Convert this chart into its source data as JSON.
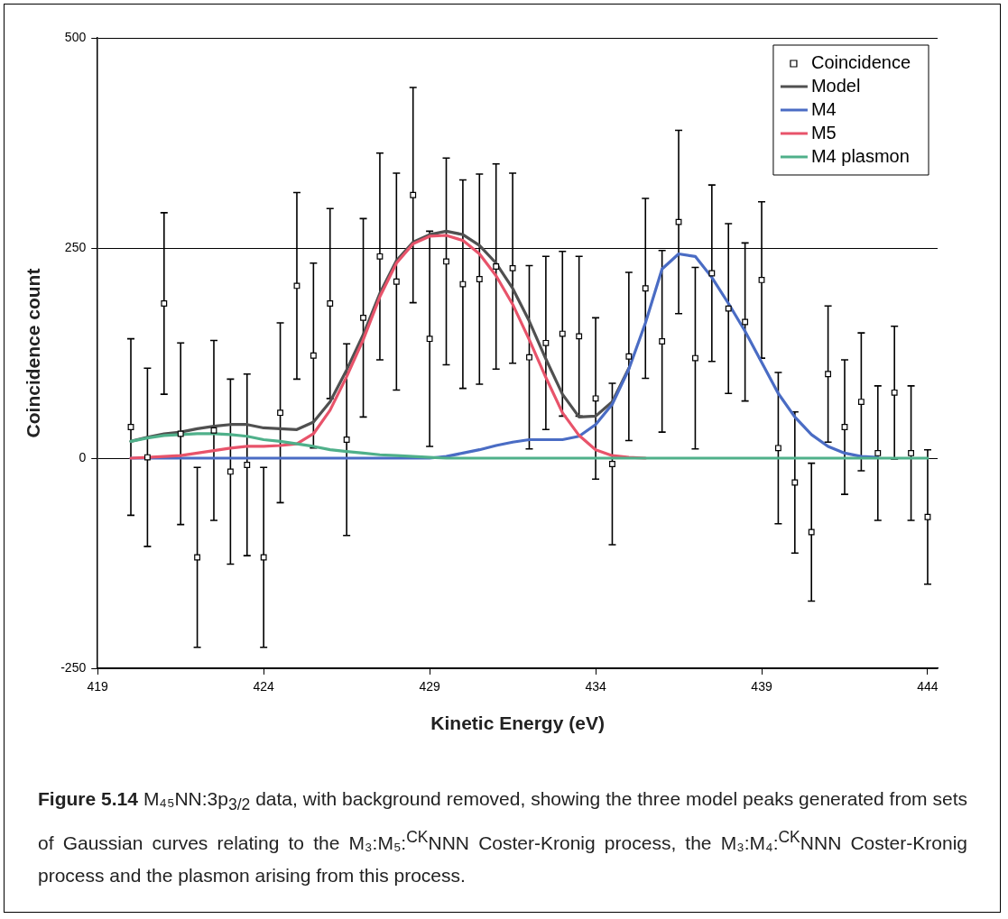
{
  "chart_data": {
    "type": "line",
    "xlabel": "Kinetic Energy (eV)",
    "ylabel": "Coincidence count",
    "annotations": [
      "Figure 5.14",
      "M₄₅NN:3p$_{3/2}$ data, with background removed, showing the three model peaks generated from sets of Gaussian curves relating to the M₃:M₅:$^{CK}$NNN Coster-Kronig process, the M₃:M₄:$^{CK}$NNN Coster-Kronig process and the plasmon arising from this process."
    ],
    "x": [
      420,
      420.5,
      421,
      421.5,
      422,
      422.5,
      423,
      423.5,
      424,
      424.5,
      425,
      425.5,
      426,
      426.5,
      427,
      427.5,
      428,
      428.5,
      429,
      429.5,
      430,
      430.5,
      431,
      431.5,
      432,
      432.5,
      433,
      433.5,
      434,
      434.5,
      435,
      435.5,
      436,
      436.5,
      437,
      437.5,
      438,
      438.5,
      439,
      439.5,
      440,
      440.5,
      441,
      441.5,
      442,
      442.5,
      443,
      443.5,
      444
    ],
    "xlim": [
      419,
      444.3
    ],
    "xticks": [
      419,
      424,
      429,
      434,
      439,
      444
    ],
    "ylim": [
      -250,
      500
    ],
    "yticks": [
      -250,
      0,
      250,
      500
    ],
    "grid": "y",
    "legend": "top right",
    "marker": "none",
    "line_style": "solid",
    "series": [
      {
        "name": "Coincidence",
        "type": "scatter",
        "marker": "square",
        "color": "#000000",
        "values": [
          37,
          1,
          184,
          29,
          -118,
          33,
          -16,
          -8,
          -118,
          54,
          205,
          122,
          184,
          22,
          167,
          240,
          210,
          313,
          142,
          234,
          207,
          213,
          228,
          226,
          120,
          137,
          148,
          145,
          71,
          -7,
          121,
          202,
          139,
          281,
          119,
          220,
          178,
          162,
          212,
          12,
          -29,
          -88,
          100,
          37,
          67,
          6,
          78,
          6,
          -70
        ],
        "errors": [
          105,
          106,
          108,
          108,
          107,
          107,
          110,
          108,
          107,
          107,
          111,
          110,
          113,
          114,
          118,
          123,
          129,
          128,
          128,
          123,
          124,
          125,
          122,
          113,
          109,
          103,
          98,
          95,
          96,
          96,
          100,
          107,
          108,
          109,
          108,
          105,
          101,
          94,
          93,
          90,
          84,
          82,
          81,
          80,
          82,
          80,
          79,
          80,
          80
        ]
      },
      {
        "name": "Model",
        "color": "#505050",
        "values": [
          20,
          25,
          29,
          31,
          35,
          38,
          40,
          40,
          36,
          35,
          34,
          43,
          67,
          105,
          147,
          196,
          235,
          257,
          266,
          270,
          266,
          253,
          232,
          202,
          163,
          118,
          76,
          49,
          50,
          67,
          107,
          null,
          null,
          null,
          null,
          null,
          null,
          null,
          null,
          null,
          null,
          null,
          null,
          null,
          null,
          null,
          null,
          null,
          null
        ]
      },
      {
        "name": "M4",
        "color": "#4a6cc4",
        "values": [
          0,
          0,
          0,
          0,
          0,
          0,
          0,
          0,
          0,
          0,
          0,
          0,
          0,
          0,
          0,
          0,
          0,
          0,
          0,
          2,
          6,
          10,
          15,
          19,
          22,
          22,
          22,
          26,
          40,
          64,
          106,
          161,
          225,
          243,
          240,
          215,
          184,
          151,
          114,
          77,
          49,
          28,
          14,
          6,
          2,
          1,
          null,
          null,
          null
        ]
      },
      {
        "name": "M5",
        "color": "#e8536a",
        "values": [
          0,
          1,
          2,
          3,
          6,
          9,
          12,
          14,
          14,
          15,
          17,
          29,
          57,
          97,
          141,
          192,
          232,
          255,
          264,
          265,
          259,
          243,
          217,
          183,
          141,
          96,
          54,
          27,
          10,
          3,
          1,
          0,
          null,
          null,
          null,
          null,
          null,
          null,
          null,
          null,
          null,
          null,
          null,
          null,
          null,
          null,
          null,
          null,
          null
        ]
      },
      {
        "name": "M4 plasmon",
        "color": "#4fb08a",
        "values": [
          20,
          24,
          27,
          28,
          29,
          29,
          28,
          26,
          22,
          20,
          17,
          14,
          10,
          8,
          6,
          4,
          3,
          2,
          1,
          0,
          0,
          0,
          0,
          0,
          0,
          0,
          0,
          0,
          0,
          0,
          0,
          0,
          0,
          0,
          0,
          0,
          0,
          0,
          0,
          0,
          0,
          0,
          0,
          0,
          0,
          0,
          0,
          0,
          0
        ]
      }
    ]
  }
}
